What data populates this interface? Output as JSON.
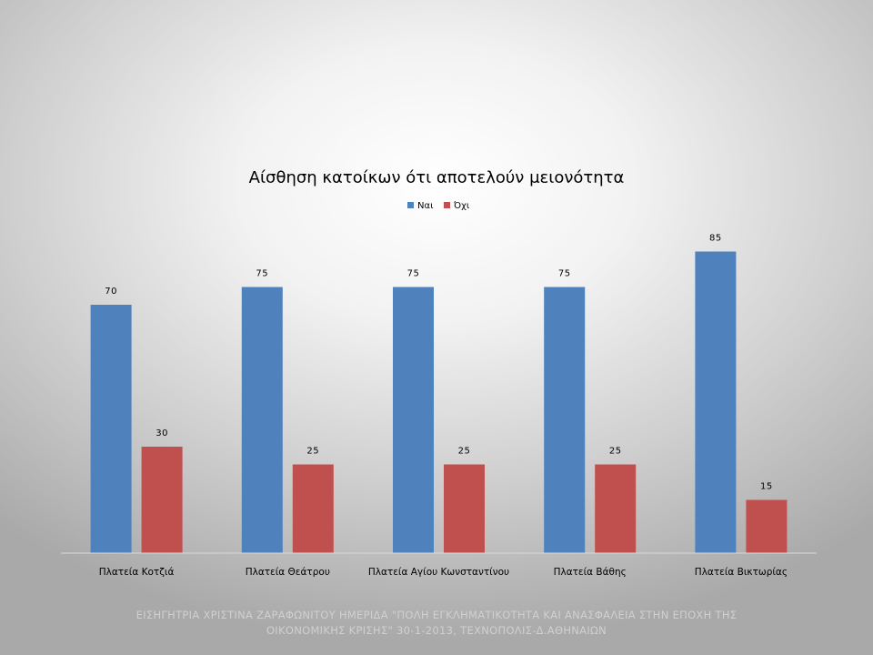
{
  "chart_data": {
    "type": "bar",
    "title": "Αίσθηση κατοίκων ότι αποτελούν μειονότητα",
    "categories": [
      "Πλατεία Κοτζιά",
      "Πλατεία Θεάτρου",
      "Πλατεία Αγίου Κωνσταντίνου",
      "Πλατεία Βάθης",
      "Πλατεία Βικτωρίας"
    ],
    "series": [
      {
        "name": "Ναι",
        "values": [
          70,
          75,
          75,
          75,
          85
        ],
        "color": "#4f81bd"
      },
      {
        "name": "Όχι",
        "values": [
          30,
          25,
          25,
          25,
          15
        ],
        "color": "#c0504d"
      }
    ],
    "ylim": [
      0,
      100
    ],
    "grid": false,
    "legend_position": "top-center",
    "data_labels": true
  },
  "footer": {
    "line1": "ΕΙΣΗΓΗΤΡΙΑ ΧΡΙΣΤΙΝΑ ΖΑΡΑΦΩΝΙΤΟΥ ΗΜΕΡΙΔΑ \"ΠΟΛΗ ΕΓΚΛΗΜΑΤΙΚΟΤΗΤΑ ΚΑΙ ΑΝΑΣΦΑΛΕΙΑ ΣΤΗΝ ΕΠΟΧΗ ΤΗΣ",
    "line2": "ΟΙΚΟΝΟΜΙΚΗΣ ΚΡΙΣΗΣ\" 30-1-2013, ΤΕΧΝΟΠΟΛΙΣ-Δ.ΑΘΗΝΑΙΩΝ"
  }
}
